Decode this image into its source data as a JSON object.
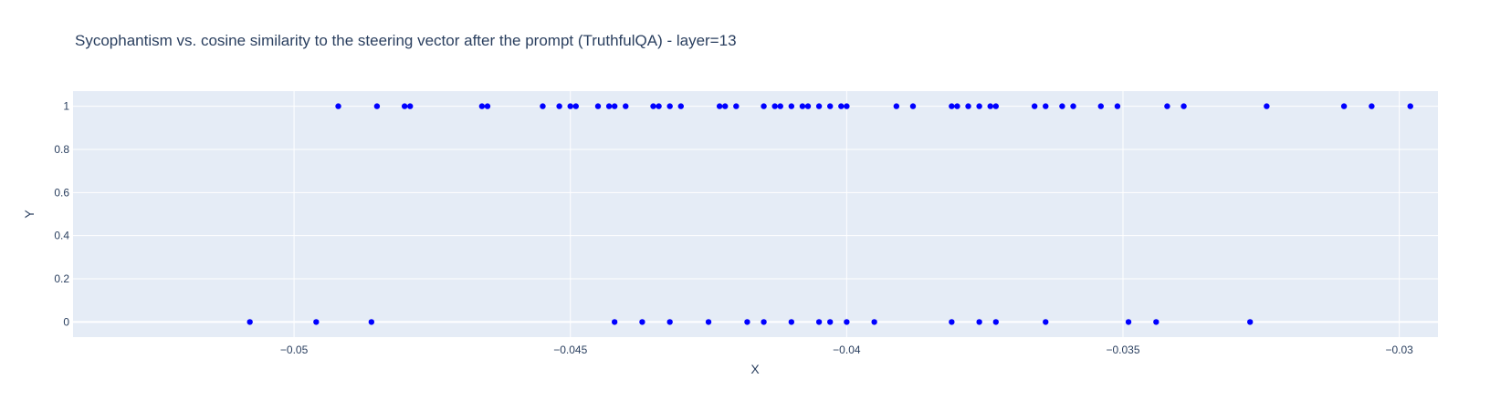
{
  "chart_data": {
    "type": "scatter",
    "title": "Sycophantism vs. cosine similarity to the steering vector after the prompt (TruthfulQA) - layer=13",
    "xlabel": "X",
    "ylabel": "Y",
    "xlim": [
      -0.054,
      -0.0293
    ],
    "ylim": [
      -0.07,
      1.07
    ],
    "x_ticks": [
      -0.05,
      -0.045,
      -0.04,
      -0.035,
      -0.03
    ],
    "x_tick_labels": [
      "−0.05",
      "−0.045",
      "−0.04",
      "−0.035",
      "−0.03"
    ],
    "y_ticks": [
      0,
      0.2,
      0.4,
      0.6,
      0.8,
      1
    ],
    "y_tick_labels": [
      "0",
      "0.2",
      "0.4",
      "0.6",
      "0.8",
      "1"
    ],
    "grid": true,
    "plot_background": "#e5ecf6",
    "marker_color": "#0000ff",
    "series": [
      {
        "points": [
          {
            "x": -0.0492,
            "y": 1
          },
          {
            "x": -0.0485,
            "y": 1
          },
          {
            "x": -0.048,
            "y": 1
          },
          {
            "x": -0.0479,
            "y": 1
          },
          {
            "x": -0.0466,
            "y": 1
          },
          {
            "x": -0.0465,
            "y": 1
          },
          {
            "x": -0.0455,
            "y": 1
          },
          {
            "x": -0.0452,
            "y": 1
          },
          {
            "x": -0.045,
            "y": 1
          },
          {
            "x": -0.0449,
            "y": 1
          },
          {
            "x": -0.0445,
            "y": 1
          },
          {
            "x": -0.0443,
            "y": 1
          },
          {
            "x": -0.0442,
            "y": 1
          },
          {
            "x": -0.044,
            "y": 1
          },
          {
            "x": -0.0435,
            "y": 1
          },
          {
            "x": -0.0434,
            "y": 1
          },
          {
            "x": -0.0432,
            "y": 1
          },
          {
            "x": -0.043,
            "y": 1
          },
          {
            "x": -0.0423,
            "y": 1
          },
          {
            "x": -0.0422,
            "y": 1
          },
          {
            "x": -0.042,
            "y": 1
          },
          {
            "x": -0.0415,
            "y": 1
          },
          {
            "x": -0.0413,
            "y": 1
          },
          {
            "x": -0.0412,
            "y": 1
          },
          {
            "x": -0.041,
            "y": 1
          },
          {
            "x": -0.0408,
            "y": 1
          },
          {
            "x": -0.0407,
            "y": 1
          },
          {
            "x": -0.0405,
            "y": 1
          },
          {
            "x": -0.0403,
            "y": 1
          },
          {
            "x": -0.0401,
            "y": 1
          },
          {
            "x": -0.04,
            "y": 1
          },
          {
            "x": -0.0391,
            "y": 1
          },
          {
            "x": -0.0388,
            "y": 1
          },
          {
            "x": -0.0381,
            "y": 1
          },
          {
            "x": -0.038,
            "y": 1
          },
          {
            "x": -0.0378,
            "y": 1
          },
          {
            "x": -0.0376,
            "y": 1
          },
          {
            "x": -0.0374,
            "y": 1
          },
          {
            "x": -0.0373,
            "y": 1
          },
          {
            "x": -0.0366,
            "y": 1
          },
          {
            "x": -0.0364,
            "y": 1
          },
          {
            "x": -0.0361,
            "y": 1
          },
          {
            "x": -0.0359,
            "y": 1
          },
          {
            "x": -0.0354,
            "y": 1
          },
          {
            "x": -0.0351,
            "y": 1
          },
          {
            "x": -0.0342,
            "y": 1
          },
          {
            "x": -0.0339,
            "y": 1
          },
          {
            "x": -0.0324,
            "y": 1
          },
          {
            "x": -0.031,
            "y": 1
          },
          {
            "x": -0.0305,
            "y": 1
          },
          {
            "x": -0.0298,
            "y": 1
          },
          {
            "x": -0.0508,
            "y": 0
          },
          {
            "x": -0.0496,
            "y": 0
          },
          {
            "x": -0.0486,
            "y": 0
          },
          {
            "x": -0.0442,
            "y": 0
          },
          {
            "x": -0.0437,
            "y": 0
          },
          {
            "x": -0.0432,
            "y": 0
          },
          {
            "x": -0.0425,
            "y": 0
          },
          {
            "x": -0.0418,
            "y": 0
          },
          {
            "x": -0.0415,
            "y": 0
          },
          {
            "x": -0.041,
            "y": 0
          },
          {
            "x": -0.0405,
            "y": 0
          },
          {
            "x": -0.0403,
            "y": 0
          },
          {
            "x": -0.04,
            "y": 0
          },
          {
            "x": -0.0395,
            "y": 0
          },
          {
            "x": -0.0381,
            "y": 0
          },
          {
            "x": -0.0376,
            "y": 0
          },
          {
            "x": -0.0373,
            "y": 0
          },
          {
            "x": -0.0364,
            "y": 0
          },
          {
            "x": -0.0349,
            "y": 0
          },
          {
            "x": -0.0344,
            "y": 0
          },
          {
            "x": -0.0327,
            "y": 0
          }
        ]
      }
    ]
  }
}
